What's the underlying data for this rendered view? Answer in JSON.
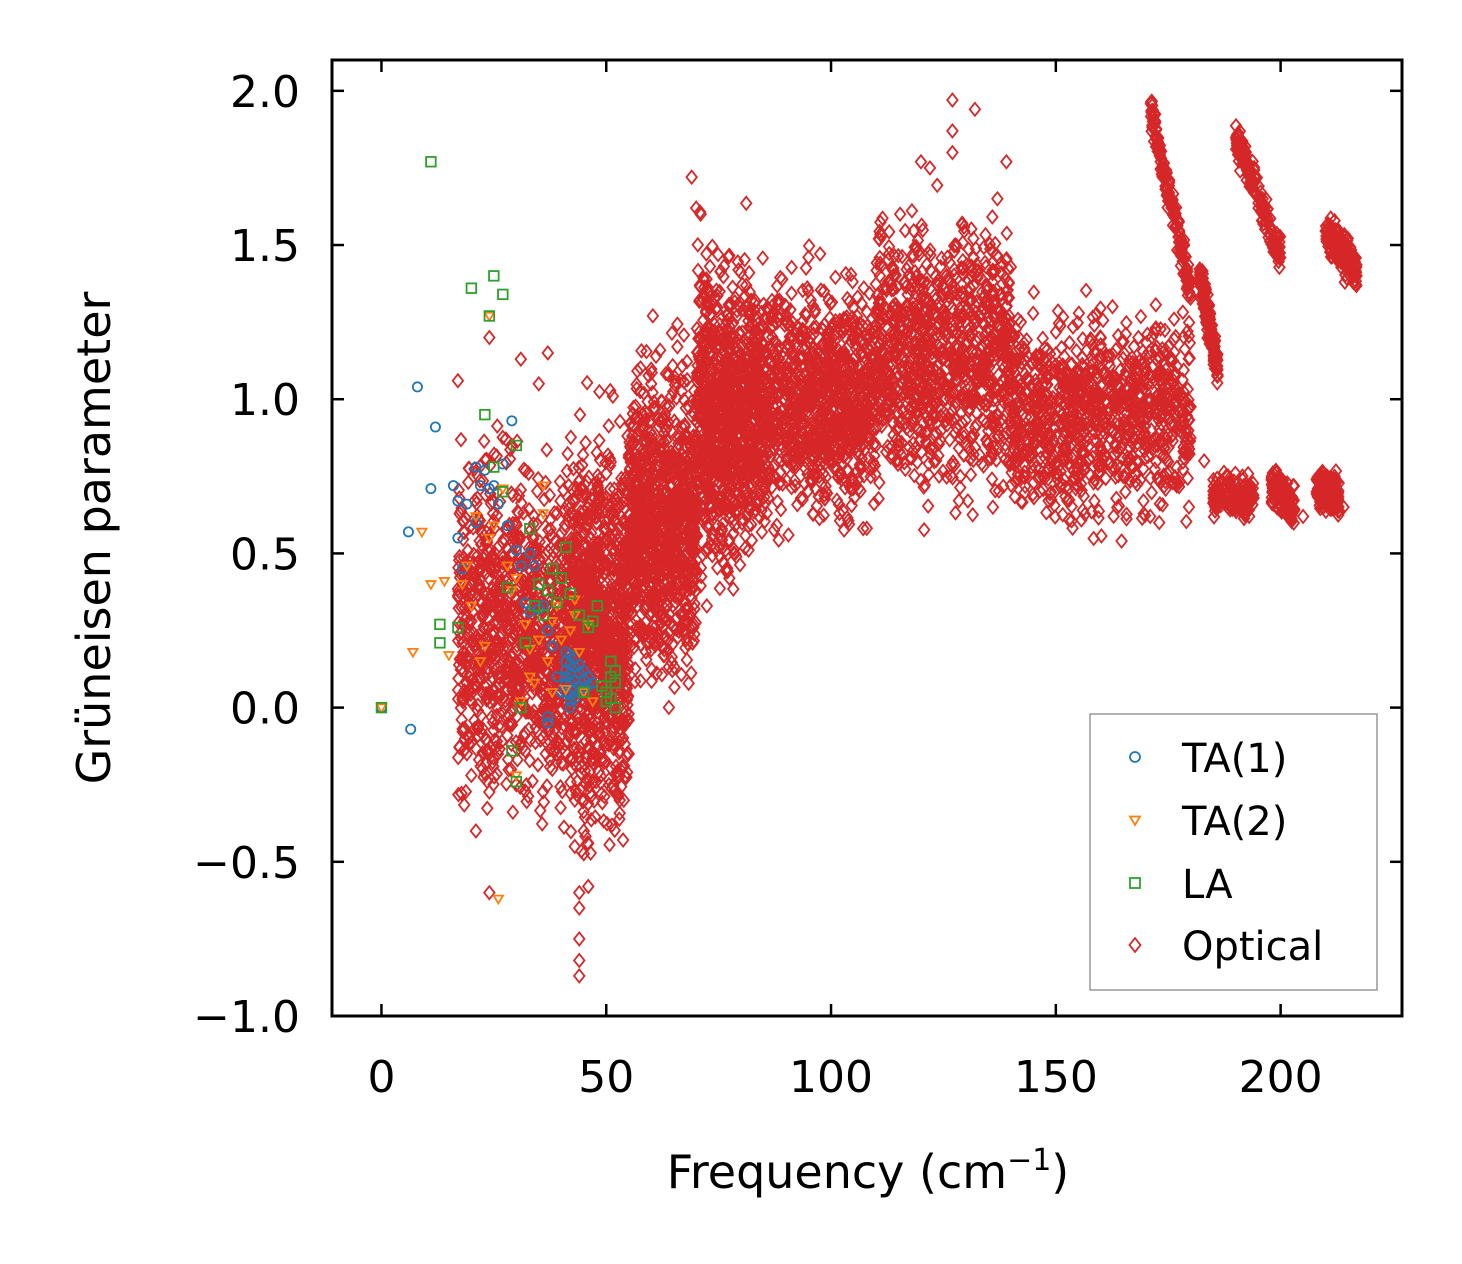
{
  "chart_data": {
    "type": "scatter",
    "title": "",
    "xlabel": "Frequency (cm",
    "xlabel_sup": "−1",
    "xlabel_suffix": ")",
    "ylabel": "Grüneisen parameter",
    "xlim": [
      -11,
      227
    ],
    "ylim": [
      -1.0,
      2.1
    ],
    "xticks": [
      0,
      50,
      100,
      150,
      200
    ],
    "xtick_labels": [
      "0",
      "50",
      "100",
      "150",
      "200"
    ],
    "yticks": [
      -1.0,
      -0.5,
      0.0,
      0.5,
      1.0,
      1.5,
      2.0
    ],
    "ytick_labels": [
      "−1.0",
      "−0.5",
      "0.0",
      "0.5",
      "1.0",
      "1.5",
      "2.0"
    ],
    "grid": false,
    "legend_position": "lower-right",
    "series": [
      {
        "name": "TA(1)",
        "marker": "circle",
        "color": "#1f77b4",
        "points": [
          [
            0,
            0
          ],
          [
            6,
            0.57
          ],
          [
            6.5,
            -0.07
          ],
          [
            8,
            1.04
          ],
          [
            11,
            0.71
          ],
          [
            12,
            0.91
          ],
          [
            16,
            0.72
          ],
          [
            17,
            0.67
          ],
          [
            17,
            0.55
          ],
          [
            18,
            0.45
          ],
          [
            19,
            0.66
          ],
          [
            21,
            0.78
          ],
          [
            21,
            0.6
          ],
          [
            22,
            0.72
          ],
          [
            23,
            0.77
          ],
          [
            24,
            0.71
          ],
          [
            25,
            0.72
          ],
          [
            26,
            0.66
          ],
          [
            27,
            0.79
          ],
          [
            28,
            0.59
          ],
          [
            29,
            0.93
          ],
          [
            30,
            0.51
          ],
          [
            31,
            0.46
          ],
          [
            32,
            0.34
          ],
          [
            33,
            0.5
          ],
          [
            33,
            0.31
          ],
          [
            34,
            0.46
          ],
          [
            35,
            0.32
          ],
          [
            36,
            0.33
          ],
          [
            37,
            0.25
          ],
          [
            37,
            -0.03
          ],
          [
            37,
            -0.05
          ],
          [
            38,
            0.2
          ],
          [
            39,
            0.1
          ],
          [
            40,
            0.05
          ],
          [
            41,
            0.15
          ],
          [
            41,
            0.18
          ],
          [
            41,
            0.12
          ],
          [
            41,
            0.1
          ],
          [
            41,
            0.08
          ],
          [
            41,
            0.05
          ],
          [
            42,
            0.17
          ],
          [
            42,
            0.14
          ],
          [
            42,
            0.11
          ],
          [
            42,
            0.08
          ],
          [
            42,
            0.04
          ],
          [
            42,
            0.02
          ],
          [
            42,
            0.0
          ],
          [
            43,
            0.16
          ],
          [
            43,
            0.13
          ],
          [
            43,
            0.09
          ],
          [
            43,
            0.06
          ],
          [
            43,
            0.03
          ],
          [
            44,
            0.14
          ],
          [
            44,
            0.11
          ],
          [
            44,
            0.07
          ],
          [
            44,
            0.05
          ],
          [
            45,
            0.12
          ],
          [
            45,
            0.09
          ],
          [
            45,
            0.06
          ],
          [
            46,
            0.1
          ],
          [
            46,
            0.07
          ],
          [
            47,
            0.08
          ]
        ]
      },
      {
        "name": "TA(2)",
        "marker": "triangle-down",
        "color": "#ff7f0e",
        "points": [
          [
            0,
            0
          ],
          [
            7,
            0.18
          ],
          [
            9,
            0.57
          ],
          [
            11,
            0.4
          ],
          [
            14,
            0.41
          ],
          [
            15,
            0.17
          ],
          [
            18,
            0.4
          ],
          [
            19,
            0.46
          ],
          [
            20,
            0.33
          ],
          [
            21,
            0.62
          ],
          [
            22,
            0.15
          ],
          [
            23,
            0.2
          ],
          [
            24,
            1.27
          ],
          [
            25,
            0.59
          ],
          [
            26,
            -0.62
          ],
          [
            27,
            0.71
          ],
          [
            28,
            0.46
          ],
          [
            29,
            0.38
          ],
          [
            30,
            0.42
          ],
          [
            31,
            0.02
          ],
          [
            32,
            0.27
          ],
          [
            33,
            0.19
          ],
          [
            34,
            0.08
          ],
          [
            35,
            0.22
          ],
          [
            36,
            0.72
          ],
          [
            36,
            0.63
          ],
          [
            37,
            0.15
          ],
          [
            38,
            0.05
          ],
          [
            38,
            0.28
          ],
          [
            39,
            0.33
          ],
          [
            40,
            0.22
          ],
          [
            41,
            0.06
          ],
          [
            42,
            0.25
          ],
          [
            43,
            0.35
          ],
          [
            43,
            0.3
          ],
          [
            44,
            0.18
          ],
          [
            45,
            0.05
          ],
          [
            46,
            0.27
          ],
          [
            47,
            0.02
          ],
          [
            30,
            -0.22
          ],
          [
            24,
            0.55
          ],
          [
            33,
            0.1
          ]
        ]
      },
      {
        "name": "LA",
        "marker": "square",
        "color": "#2ca02c",
        "points": [
          [
            0,
            0
          ],
          [
            11,
            1.77
          ],
          [
            13,
            0.27
          ],
          [
            13,
            0.21
          ],
          [
            17,
            0.26
          ],
          [
            20,
            1.36
          ],
          [
            23,
            0.95
          ],
          [
            24,
            1.27
          ],
          [
            25,
            1.4
          ],
          [
            27,
            1.34
          ],
          [
            27,
            0.7
          ],
          [
            28,
            0.39
          ],
          [
            29,
            -0.14
          ],
          [
            30,
            0.85
          ],
          [
            30,
            -0.24
          ],
          [
            31,
            0.0
          ],
          [
            32,
            0.21
          ],
          [
            33,
            0.58
          ],
          [
            34,
            0.33
          ],
          [
            35,
            0.4
          ],
          [
            36,
            0.3
          ],
          [
            37,
            0.38
          ],
          [
            38,
            0.45
          ],
          [
            39,
            0.34
          ],
          [
            40,
            0.42
          ],
          [
            41,
            0.52
          ],
          [
            42,
            0.37
          ],
          [
            44,
            0.3
          ],
          [
            45,
            0.05
          ],
          [
            46,
            0.26
          ],
          [
            47,
            0.28
          ],
          [
            48,
            0.33
          ],
          [
            49,
            0.07
          ],
          [
            50,
            0.05
          ],
          [
            51,
            0.15
          ],
          [
            51,
            0.1
          ],
          [
            51,
            0.03
          ],
          [
            52,
            0.12
          ],
          [
            52,
            0.08
          ],
          [
            52,
            0.0
          ],
          [
            50,
            0.02
          ],
          [
            25,
            0.78
          ]
        ]
      }
    ],
    "optical_series": {
      "name": "Optical",
      "marker": "diamond",
      "color": "#d62728",
      "point_count": 7200,
      "envelope": [
        {
          "x": [
            17,
            42
          ],
          "y_center": 0.25,
          "y_spread": 0.5
        },
        {
          "x": [
            42,
            55
          ],
          "y_center": 0.25,
          "y_spread": 0.55
        },
        {
          "x": [
            55,
            70
          ],
          "y_center": 0.6,
          "y_spread": 0.45
        },
        {
          "x": [
            70,
            85
          ],
          "y_center": 0.95,
          "y_spread": 0.45
        },
        {
          "x": [
            85,
            110
          ],
          "y_center": 1.0,
          "y_spread": 0.35
        },
        {
          "x": [
            110,
            140
          ],
          "y_center": 1.15,
          "y_spread": 0.4
        },
        {
          "x": [
            140,
            180
          ],
          "y_center": 0.95,
          "y_spread": 0.3
        }
      ],
      "outlier_points": [
        [
          17,
          1.06
        ],
        [
          19,
          0.44
        ],
        [
          19,
          -0.15
        ],
        [
          20,
          -0.22
        ],
        [
          21,
          -0.4
        ],
        [
          22,
          0.15
        ],
        [
          24,
          1.2
        ],
        [
          24,
          -0.6
        ],
        [
          26,
          -0.06
        ],
        [
          28,
          -0.09
        ],
        [
          29,
          0.85
        ],
        [
          30,
          -0.25
        ],
        [
          31,
          1.13
        ],
        [
          32,
          -0.14
        ],
        [
          35,
          1.05
        ],
        [
          37,
          1.15
        ],
        [
          38,
          -0.2
        ],
        [
          40,
          -0.18
        ],
        [
          42,
          -0.07
        ],
        [
          43,
          -0.3
        ],
        [
          43,
          -0.45
        ],
        [
          44,
          -0.6
        ],
        [
          44,
          -0.65
        ],
        [
          44,
          -0.75
        ],
        [
          44,
          -0.82
        ],
        [
          44,
          -0.87
        ],
        [
          45,
          -0.4
        ],
        [
          45,
          -0.3
        ],
        [
          46,
          -0.58
        ],
        [
          46,
          -0.44
        ],
        [
          53,
          -0.3
        ],
        [
          55,
          -0.15
        ],
        [
          69,
          1.72
        ],
        [
          70,
          1.62
        ],
        [
          71,
          1.6
        ],
        [
          120,
          1.77
        ],
        [
          122,
          1.75
        ],
        [
          127,
          1.97
        ],
        [
          127,
          1.87
        ],
        [
          127,
          1.8
        ],
        [
          132,
          1.94
        ],
        [
          137,
          1.65
        ],
        [
          139,
          1.77
        ],
        [
          136,
          0.65
        ],
        [
          156,
          0.64
        ],
        [
          165,
          0.75
        ],
        [
          171,
          0.62
        ],
        [
          173,
          0.6
        ],
        [
          176,
          0.73
        ],
        [
          183,
          0.8
        ],
        [
          193,
          0.62
        ],
        [
          196,
          1.65
        ],
        [
          200,
          0.7
        ],
        [
          203,
          0.64
        ],
        [
          205,
          0.62
        ],
        [
          212,
          0.75
        ],
        [
          214,
          0.65
        ]
      ],
      "bands": [
        {
          "x": [
            171,
            180
          ],
          "y": [
            1.95,
            1.35
          ]
        },
        {
          "x": [
            190,
            200
          ],
          "y": [
            1.85,
            1.47
          ]
        },
        {
          "x": [
            210,
            217
          ],
          "y": [
            1.55,
            1.42
          ]
        },
        {
          "x": [
            182,
            186
          ],
          "y": [
            1.4,
            1.1
          ]
        },
        {
          "x": [
            185,
            194
          ],
          "y": [
            0.7,
            0.68
          ]
        },
        {
          "x": [
            198,
            203
          ],
          "y": [
            0.72,
            0.65
          ]
        },
        {
          "x": [
            208,
            213
          ],
          "y": [
            0.72,
            0.68
          ]
        }
      ]
    }
  }
}
